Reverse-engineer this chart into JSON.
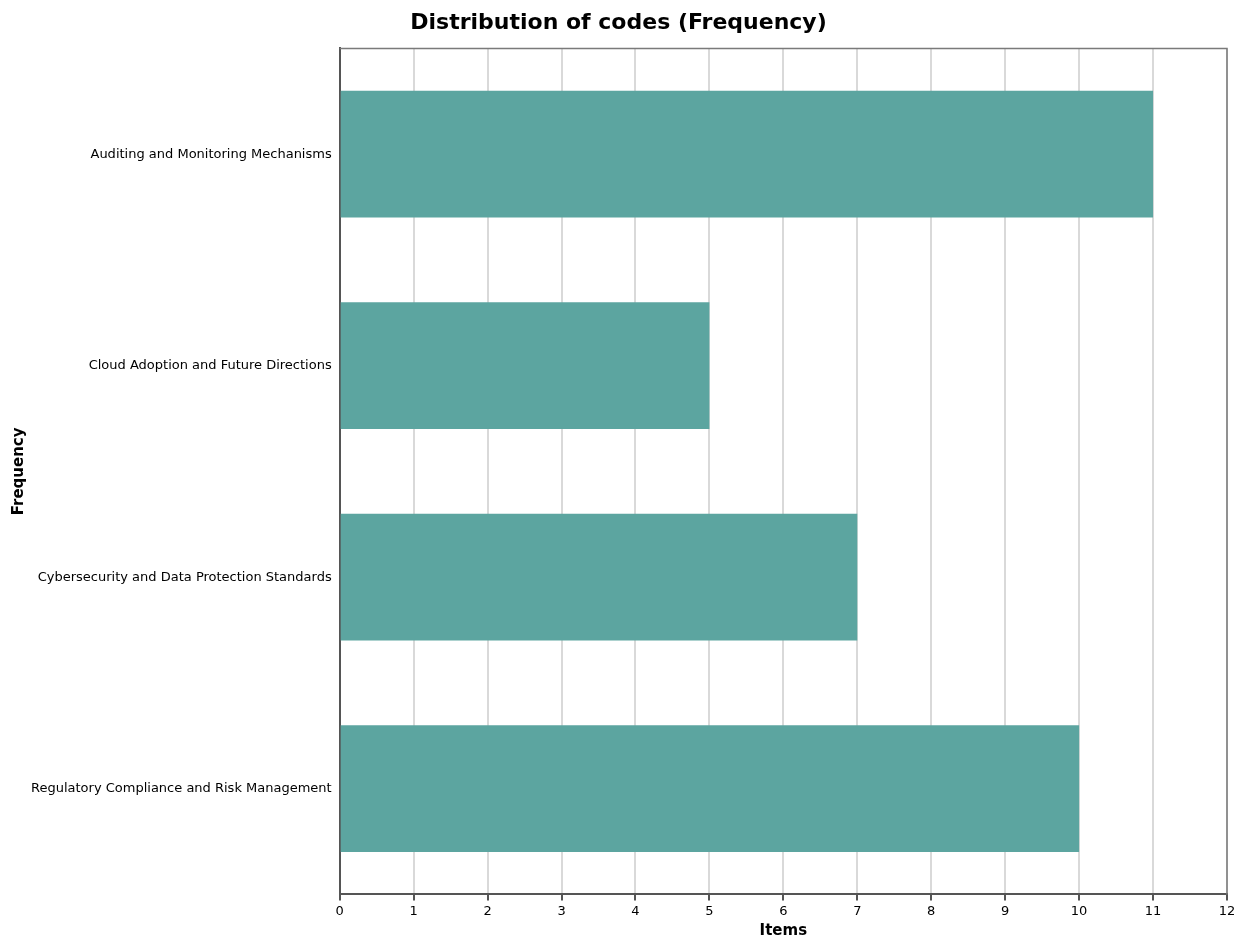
{
  "chart_data": {
    "type": "bar",
    "orientation": "horizontal",
    "title": "Distribution of codes (Frequency)",
    "xlabel": "Items",
    "ylabel": "Frequency",
    "categories": [
      "Auditing and Monitoring Mechanisms",
      "Cloud Adoption and Future Directions",
      "Cybersecurity and Data Protection Standards",
      "Regulatory Compliance and Risk Management"
    ],
    "values": [
      11,
      5,
      7,
      10
    ],
    "color": "#5ca5a0",
    "xlim": [
      0,
      12
    ],
    "xticks": [
      0,
      1,
      2,
      3,
      4,
      5,
      6,
      7,
      8,
      9,
      10,
      11,
      12
    ],
    "grid": "x",
    "legend": false
  }
}
